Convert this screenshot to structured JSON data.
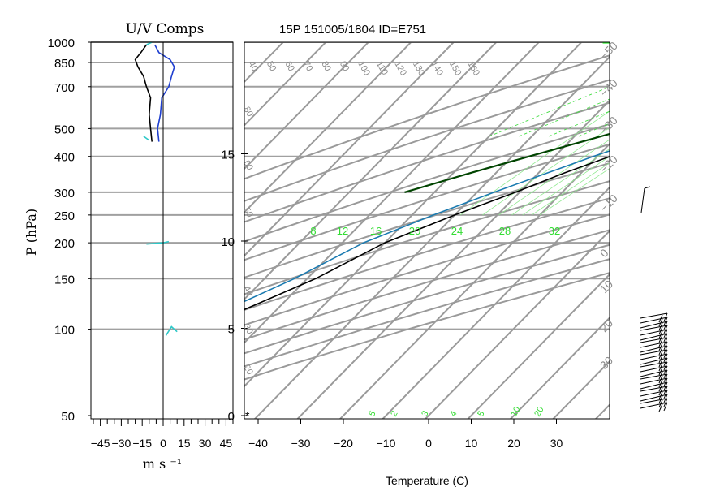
{
  "title": "15P 151005/1804 ID=E751",
  "chart_data": [
    {
      "type": "line",
      "title": "U/V Comps",
      "xlabel": "m s ⁻¹",
      "ylabel": "P (hPa)",
      "xlim": [
        -50,
        50
      ],
      "xticks": [
        -45,
        -30,
        -15,
        0,
        15,
        30,
        45
      ],
      "xtick_labels": [
        "−45",
        "−30",
        "−15",
        "0",
        "15",
        "30",
        "45"
      ],
      "pressure_ticks": [
        50,
        100,
        150,
        200,
        250,
        300,
        400,
        500,
        700,
        850,
        1000
      ],
      "series": [
        {
          "color": "#000000",
          "points": [
            [
              -8,
              450
            ],
            [
              -9,
              500
            ],
            [
              -10,
              560
            ],
            [
              -9,
              640
            ],
            [
              -12,
              700
            ],
            [
              -14,
              760
            ],
            [
              -18,
              820
            ],
            [
              -20,
              870
            ],
            [
              -16,
              920
            ],
            [
              -12,
              980
            ]
          ]
        },
        {
          "color": "#1f3fcf",
          "points": [
            [
              -3,
              450
            ],
            [
              -4,
              500
            ],
            [
              -2,
              560
            ],
            [
              -1,
              640
            ],
            [
              4,
              700
            ],
            [
              6,
              760
            ],
            [
              8,
              820
            ],
            [
              5,
              870
            ],
            [
              -3,
              920
            ],
            [
              -6,
              980
            ]
          ]
        },
        {
          "color": "#2ec8c8",
          "points": [
            [
              2,
              95
            ],
            [
              6,
              102
            ],
            [
              10,
              98
            ],
            [
              -12,
              198
            ],
            [
              0,
              200
            ],
            [
              4,
              202
            ],
            [
              -10,
              455
            ],
            [
              -14,
              470
            ],
            [
              -12,
              980
            ],
            [
              -8,
              1000
            ]
          ]
        }
      ]
    },
    {
      "type": "line",
      "xlabel": "Temperature (C)",
      "xlim": [
        -45,
        40
      ],
      "xticks": [
        -40,
        -30,
        -20,
        -10,
        0,
        10,
        20,
        30
      ],
      "xtick_labels": [
        "−40",
        "−30",
        "−20",
        "−10",
        "0",
        "10",
        "20",
        "30"
      ],
      "height_ticks": [
        0,
        5,
        10,
        15
      ],
      "isotherm_labels": [
        "−50",
        "−40",
        "−30",
        "−20",
        "−10",
        "0",
        "10",
        "20",
        "30"
      ],
      "theta_labels": [
        "40",
        "50",
        "60",
        "70",
        "80",
        "90",
        "100",
        "110",
        "120",
        "130",
        "140",
        "150",
        "160"
      ],
      "dry_adiabat_left_labels": [
        "80",
        "60",
        "50",
        "40",
        "30",
        "20"
      ],
      "mixing_ratio_labels": [
        "8",
        "12",
        "16",
        "20",
        "24",
        "28",
        "32"
      ],
      "bottom_labels": [
        "5",
        "2",
        "3",
        "4",
        "5",
        "10",
        "20"
      ],
      "series": [
        {
          "name": "temperature",
          "color": "#000000",
          "points": [
            [
              23,
              1000
            ],
            [
              22,
              950
            ],
            [
              20,
              900
            ],
            [
              18,
              850
            ],
            [
              16,
              800
            ],
            [
              13,
              750
            ],
            [
              10,
              700
            ],
            [
              6,
              650
            ],
            [
              2,
              600
            ],
            [
              -2,
              550
            ],
            [
              -6,
              500
            ],
            [
              -11,
              450
            ],
            [
              -17,
              400
            ],
            [
              -24,
              350
            ],
            [
              -31,
              300
            ],
            [
              -40,
              250
            ],
            [
              -50,
              200
            ],
            [
              -58,
              150
            ],
            [
              -70,
              110
            ],
            [
              -78,
              100
            ],
            [
              -75,
              85
            ],
            [
              -72,
              75
            ]
          ]
        },
        {
          "name": "dewpoint",
          "color": "#1a7ab0",
          "points": [
            [
              22,
              1000
            ],
            [
              21,
              950
            ],
            [
              19,
              900
            ],
            [
              17,
              850
            ],
            [
              14,
              800
            ],
            [
              11,
              750
            ],
            [
              8,
              700
            ],
            [
              4,
              650
            ],
            [
              0,
              600
            ],
            [
              -4,
              550
            ],
            [
              -9,
              500
            ],
            [
              -14,
              450
            ],
            [
              -21,
              400
            ],
            [
              -28,
              350
            ],
            [
              -36,
              300
            ],
            [
              -45,
              250
            ],
            [
              -55,
              200
            ],
            [
              -63,
              150
            ],
            [
              -74,
              110
            ],
            [
              -80,
              100
            ],
            [
              -78,
              85
            ],
            [
              -75,
              75
            ]
          ]
        },
        {
          "name": "parcel",
          "color": "#004400",
          "points": [
            [
              22,
              1000
            ],
            [
              20,
              950
            ],
            [
              18,
              900
            ],
            [
              15,
              850
            ],
            [
              12,
              800
            ],
            [
              8,
              750
            ],
            [
              4,
              700
            ],
            [
              -1,
              650
            ],
            [
              -6,
              600
            ],
            [
              -12,
              550
            ],
            [
              -19,
              500
            ],
            [
              -27,
              450
            ],
            [
              -36,
              400
            ],
            [
              -46,
              350
            ],
            [
              -57,
              300
            ]
          ]
        },
        {
          "name": "surface",
          "color": "#33ee33",
          "points": [
            [
              -45,
              1000
            ],
            [
              -20,
              995
            ],
            [
              10,
              985
            ],
            [
              22,
              975
            ]
          ]
        }
      ]
    }
  ]
}
